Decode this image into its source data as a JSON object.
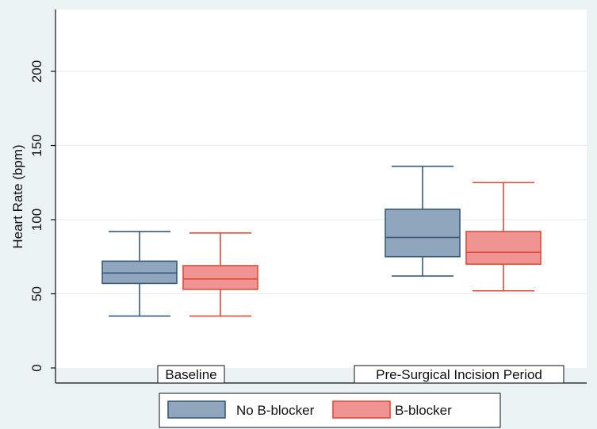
{
  "chart_data": {
    "type": "box",
    "ylabel": "Heart Rate (bpm)",
    "ylim": [
      0,
      240
    ],
    "yticks": [
      0,
      50,
      100,
      150,
      200
    ],
    "grid": true,
    "categories": [
      "Baseline",
      "Pre-Surgical Incision Period"
    ],
    "series": [
      {
        "name": "No B-blocker",
        "fill": "#8fa6bd",
        "stroke": "#3a5a7c",
        "boxes": [
          {
            "min": 35,
            "q1": 57,
            "median": 64,
            "q3": 72,
            "max": 92
          },
          {
            "min": 62,
            "q1": 75,
            "median": 88,
            "q3": 107,
            "max": 136
          }
        ]
      },
      {
        "name": "B-blocker",
        "fill": "#ef9393",
        "stroke": "#e04b35",
        "boxes": [
          {
            "min": 35,
            "q1": 53,
            "median": 60,
            "q3": 69,
            "max": 91
          },
          {
            "min": 52,
            "q1": 70,
            "median": 78,
            "q3": 92,
            "max": 125
          }
        ]
      }
    ],
    "legend": {
      "position": "bottom"
    }
  }
}
